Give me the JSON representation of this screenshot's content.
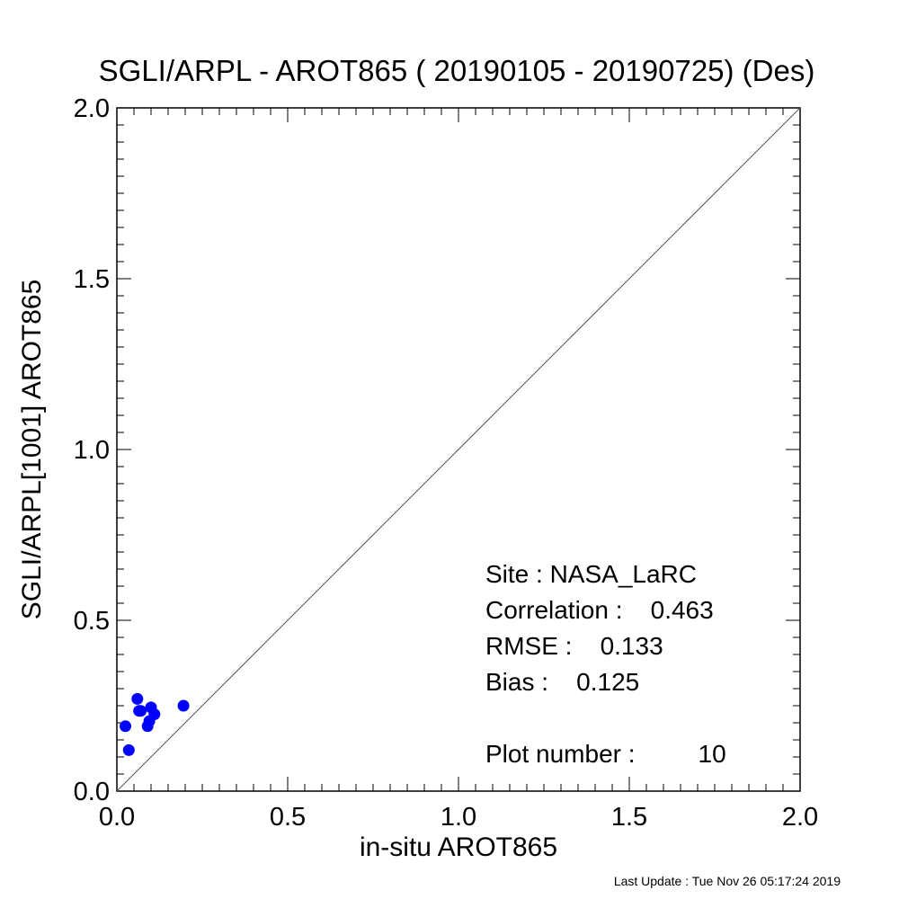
{
  "chart_data": {
    "type": "scatter",
    "title": "SGLI/ARPL - AROT865 ( 20190105 - 20190725) (Des)",
    "xlabel": "in-situ AROT865",
    "ylabel": "SGLI/ARPL[1001]    AROT865",
    "xlim": [
      0.0,
      2.0
    ],
    "ylim": [
      0.0,
      2.0
    ],
    "x_ticks": [
      "0.0",
      "0.5",
      "1.0",
      "1.5",
      "2.0"
    ],
    "y_ticks": [
      "0.0",
      "0.5",
      "1.0",
      "1.5",
      "2.0"
    ],
    "grid": false,
    "reference_line": "1:1",
    "marker_color": "#0000ff",
    "points": [
      {
        "x": 0.025,
        "y": 0.19
      },
      {
        "x": 0.035,
        "y": 0.12
      },
      {
        "x": 0.06,
        "y": 0.27
      },
      {
        "x": 0.065,
        "y": 0.235
      },
      {
        "x": 0.07,
        "y": 0.235
      },
      {
        "x": 0.09,
        "y": 0.19
      },
      {
        "x": 0.095,
        "y": 0.205
      },
      {
        "x": 0.1,
        "y": 0.245
      },
      {
        "x": 0.11,
        "y": 0.225
      },
      {
        "x": 0.195,
        "y": 0.25
      }
    ],
    "stats": {
      "site": "Site : NASA_LaRC",
      "correlation": "Correlation :    0.463",
      "rmse": "RMSE :    0.133",
      "bias": "Bias :    0.125",
      "plot_number": "Plot number :         10"
    }
  },
  "footer": "Last Update : Tue Nov 26 05:17:24 2019"
}
